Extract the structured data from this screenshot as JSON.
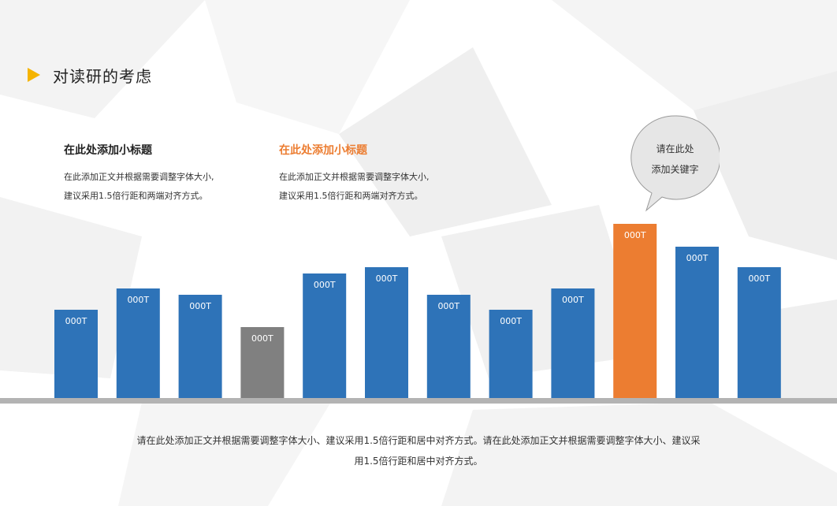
{
  "header": {
    "title": "对读研的考虑"
  },
  "blocks": [
    {
      "subtitle": "在此处添加小标题",
      "lines": [
        "在此添加正文并根据需要调整字体大小,",
        "建议采用1.5倍行距和两端对齐方式。"
      ]
    },
    {
      "subtitle": "在此处添加小标题",
      "lines": [
        "在此添加正文并根据需要调整字体大小,",
        "建议采用1.5倍行距和两端对齐方式。"
      ]
    }
  ],
  "bubble": {
    "lines": [
      "请在此处",
      "添加关键字"
    ]
  },
  "footer": {
    "lines": [
      "请在此处添加正文并根据需要调整字体大小、建议采用1.5倍行距和居中对齐方式。请在此处添加正文并根据需要调整字体大小、建议采",
      "用1.5倍行距和居中对齐方式。"
    ]
  },
  "colors": {
    "blue": "#2e73b8",
    "gray": "#808080",
    "orange": "#ec7d31",
    "accent": "#f5b400",
    "baseline": "#b3b3b3"
  },
  "chart_data": {
    "type": "bar",
    "categories": [
      "",
      "",
      "",
      "",
      "",
      "",
      "",
      "",
      "",
      "",
      "",
      ""
    ],
    "values": [
      112,
      139,
      131,
      90,
      158,
      166,
      131,
      112,
      139,
      221,
      192,
      166
    ],
    "data_labels": [
      "000T",
      "000T",
      "000T",
      "000T",
      "000T",
      "000T",
      "000T",
      "000T",
      "000T",
      "000T",
      "000T",
      "000T"
    ],
    "bar_colors": [
      "blue",
      "blue",
      "blue",
      "gray",
      "blue",
      "blue",
      "blue",
      "blue",
      "blue",
      "orange",
      "blue",
      "blue"
    ],
    "ylim": [
      0,
      235
    ],
    "axes_visible": false,
    "grid": false
  }
}
